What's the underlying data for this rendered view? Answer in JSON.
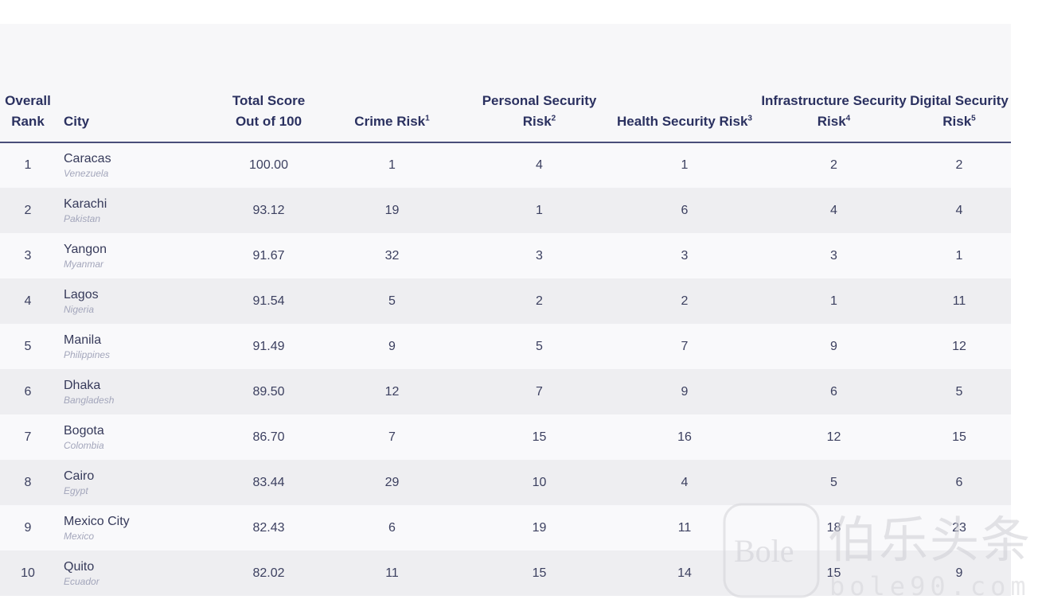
{
  "table": {
    "headers": [
      {
        "label": "Overall Rank",
        "sup": ""
      },
      {
        "label": "City",
        "sup": ""
      },
      {
        "label": "Total Score Out of 100",
        "sup": ""
      },
      {
        "label": "Crime Risk",
        "sup": "1"
      },
      {
        "label": "Personal Security Risk",
        "sup": "2"
      },
      {
        "label": "Health Security Risk",
        "sup": "3"
      },
      {
        "label": "Infrastructure Security Risk",
        "sup": "4"
      },
      {
        "label": "Digital Security Risk",
        "sup": "5"
      }
    ],
    "rows": [
      {
        "rank": "1",
        "city": "Caracas",
        "country": "Venezuela",
        "score": "100.00",
        "crime": "1",
        "personal": "4",
        "health": "1",
        "infrastructure": "2",
        "digital": "2"
      },
      {
        "rank": "2",
        "city": "Karachi",
        "country": "Pakistan",
        "score": "93.12",
        "crime": "19",
        "personal": "1",
        "health": "6",
        "infrastructure": "4",
        "digital": "4"
      },
      {
        "rank": "3",
        "city": "Yangon",
        "country": "Myanmar",
        "score": "91.67",
        "crime": "32",
        "personal": "3",
        "health": "3",
        "infrastructure": "3",
        "digital": "1"
      },
      {
        "rank": "4",
        "city": "Lagos",
        "country": "Nigeria",
        "score": "91.54",
        "crime": "5",
        "personal": "2",
        "health": "2",
        "infrastructure": "1",
        "digital": "11"
      },
      {
        "rank": "5",
        "city": "Manila",
        "country": "Philippines",
        "score": "91.49",
        "crime": "9",
        "personal": "5",
        "health": "7",
        "infrastructure": "9",
        "digital": "12"
      },
      {
        "rank": "6",
        "city": "Dhaka",
        "country": "Bangladesh",
        "score": "89.50",
        "crime": "12",
        "personal": "7",
        "health": "9",
        "infrastructure": "6",
        "digital": "5"
      },
      {
        "rank": "7",
        "city": "Bogota",
        "country": "Colombia",
        "score": "86.70",
        "crime": "7",
        "personal": "15",
        "health": "16",
        "infrastructure": "12",
        "digital": "15"
      },
      {
        "rank": "8",
        "city": "Cairo",
        "country": "Egypt",
        "score": "83.44",
        "crime": "29",
        "personal": "10",
        "health": "4",
        "infrastructure": "5",
        "digital": "6"
      },
      {
        "rank": "9",
        "city": "Mexico City",
        "country": "Mexico",
        "score": "82.43",
        "crime": "6",
        "personal": "19",
        "health": "11",
        "infrastructure": "18",
        "digital": "23"
      },
      {
        "rank": "10",
        "city": "Quito",
        "country": "Ecuador",
        "score": "82.02",
        "crime": "11",
        "personal": "15",
        "health": "14",
        "infrastructure": "15",
        "digital": "9"
      }
    ]
  },
  "watermark": {
    "logo_text": "Bole",
    "chinese_text": "伯乐头条",
    "domain_text": "bole90.com",
    "color": "#d8d8dc"
  }
}
